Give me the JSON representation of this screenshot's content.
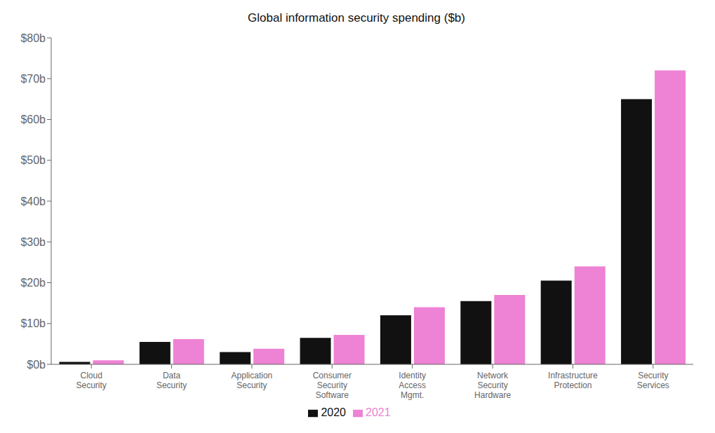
{
  "chart_data": {
    "type": "bar",
    "title": "Global information security spending ($b)",
    "categories": [
      "Cloud\nSecurity",
      "Data\nSecurity",
      "Application\nSecurity",
      "Consumer\nSecurity\nSoftware",
      "Identity\nAccess\nMgmt.",
      "Network\nSecurity\nHardware",
      "Infrastructure\nProtection",
      "Security\nServices"
    ],
    "series": [
      {
        "name": "2020",
        "color": "#111111",
        "values": [
          0.6,
          5.5,
          3.0,
          6.5,
          12.0,
          15.5,
          20.5,
          65.0
        ]
      },
      {
        "name": "2021",
        "color": "#ee82d4",
        "values": [
          1.0,
          6.2,
          3.8,
          7.2,
          14.0,
          17.0,
          24.0,
          72.0
        ]
      }
    ],
    "ylim": [
      0,
      80
    ],
    "yticks": [
      {
        "value": 0,
        "label": "$0b"
      },
      {
        "value": 10,
        "label": "$10b"
      },
      {
        "value": 20,
        "label": "$20b"
      },
      {
        "value": 30,
        "label": "$30b"
      },
      {
        "value": 40,
        "label": "$40b"
      },
      {
        "value": 50,
        "label": "$50b"
      },
      {
        "value": 60,
        "label": "$60b"
      },
      {
        "value": 70,
        "label": "$70b"
      },
      {
        "value": 80,
        "label": "$80b"
      }
    ],
    "grid": false,
    "legend": "bottom"
  }
}
